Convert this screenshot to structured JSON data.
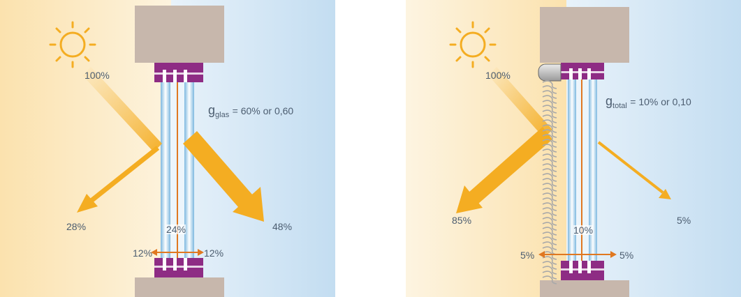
{
  "colors": {
    "warm_side": "#fbe0ad",
    "cool_side": "#c9e1f3",
    "arrow": "#f4ad22",
    "frame_purple": "#8e2c84",
    "wall": "#c7b7ac",
    "glass_edge": "#8fc5e6",
    "inner_line": "#e07820",
    "label_text": "#4c5d70"
  },
  "icons": [
    "sun-icon",
    "blind-icon"
  ],
  "panels": [
    {
      "id": "glass_only",
      "incident": "100%",
      "g_symbol": "g",
      "g_subscript": "glas",
      "g_value": "= 60% or 0,60",
      "reflected": "28%",
      "transmitted": "48%",
      "absorbed": "24%",
      "left_exchange": "12%",
      "right_exchange": "12%"
    },
    {
      "id": "with_blind",
      "incident": "100%",
      "g_symbol": "g",
      "g_subscript": "total",
      "g_value": "= 10% or 0,10",
      "reflected": "85%",
      "transmitted": "5%",
      "absorbed": "10%",
      "left_exchange": "5%",
      "right_exchange": "5%"
    }
  ]
}
